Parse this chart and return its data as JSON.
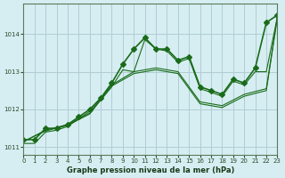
{
  "title": "Graphe pression niveau de la mer (hPa)",
  "bg_color": "#d6eef2",
  "grid_color": "#b0ccd4",
  "line_color": "#1a6b1a",
  "xlim": [
    0,
    23
  ],
  "ylim": [
    1010.8,
    1014.8
  ],
  "yticks": [
    1011,
    1012,
    1013,
    1014
  ],
  "xticks": [
    0,
    1,
    2,
    3,
    4,
    5,
    6,
    7,
    8,
    9,
    10,
    11,
    12,
    13,
    14,
    15,
    16,
    17,
    18,
    19,
    20,
    21,
    22,
    23
  ],
  "series": [
    {
      "x": [
        0,
        1,
        2,
        3,
        4,
        5,
        6,
        7,
        8,
        9,
        10,
        11,
        12,
        13,
        14,
        15,
        16,
        17,
        18,
        19,
        20,
        21,
        22,
        23
      ],
      "y": [
        1011.2,
        1011.2,
        1011.5,
        1011.5,
        1011.6,
        1011.8,
        1012.0,
        1012.3,
        1012.7,
        1013.2,
        1013.6,
        1013.9,
        1013.6,
        1013.6,
        1013.3,
        1013.4,
        1012.6,
        1012.5,
        1012.4,
        1012.8,
        1012.7,
        1013.1,
        1014.3,
        1014.5
      ],
      "marker": "D",
      "markersize": 3,
      "linewidth": 1.2
    },
    {
      "x": [
        0,
        1,
        2,
        3,
        4,
        5,
        6,
        7,
        8,
        9,
        10,
        11,
        12,
        13,
        14,
        15,
        16,
        17,
        18,
        19,
        20,
        21,
        22,
        23
      ],
      "y": [
        1011.1,
        1011.1,
        1011.4,
        1011.45,
        1011.55,
        1011.75,
        1011.95,
        1012.25,
        1012.6,
        1013.05,
        1013.0,
        1013.85,
        1013.6,
        1013.55,
        1013.25,
        1013.35,
        1012.55,
        1012.45,
        1012.35,
        1012.75,
        1012.65,
        1013.0,
        1013.0,
        1014.45
      ],
      "marker": null,
      "linewidth": 0.8
    },
    {
      "x": [
        0,
        2,
        4,
        6,
        8,
        10,
        12,
        14,
        16,
        18,
        20,
        22,
        23
      ],
      "y": [
        1011.15,
        1011.45,
        1011.6,
        1011.9,
        1012.65,
        1013.0,
        1013.1,
        1013.0,
        1012.2,
        1012.1,
        1012.4,
        1012.55,
        1014.45
      ],
      "marker": null,
      "linewidth": 0.8
    },
    {
      "x": [
        0,
        2,
        4,
        6,
        8,
        10,
        12,
        14,
        16,
        18,
        20,
        22,
        23
      ],
      "y": [
        1011.15,
        1011.43,
        1011.58,
        1011.88,
        1012.62,
        1012.95,
        1013.05,
        1012.95,
        1012.15,
        1012.05,
        1012.35,
        1012.5,
        1014.42
      ],
      "marker": null,
      "linewidth": 0.8
    }
  ]
}
